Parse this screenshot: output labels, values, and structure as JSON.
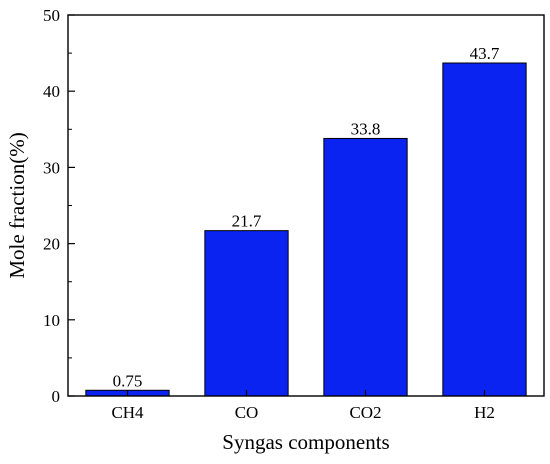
{
  "chart_data": {
    "type": "bar",
    "categories": [
      "CH4",
      "CO",
      "CO2",
      "H2"
    ],
    "values": [
      0.75,
      21.7,
      33.8,
      43.7
    ],
    "data_labels": [
      "0.75",
      "21.7",
      "33.8",
      "43.7"
    ],
    "xlabel": "Syngas components",
    "ylabel": "Mole fraction(%)",
    "ylim": [
      0,
      50
    ],
    "yticks": [
      0,
      10,
      20,
      30,
      40,
      50
    ],
    "grid": false,
    "bar_color": "#0a23f0",
    "bar_edge_color": "#000000"
  }
}
